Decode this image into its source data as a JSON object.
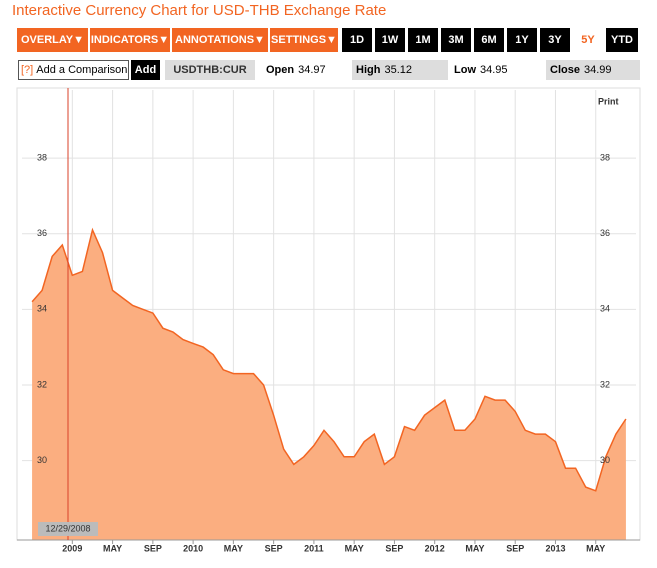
{
  "header": {
    "title": "Interactive Currency Chart for USD-THB Exchange Rate"
  },
  "menus": [
    "OVERLAY▼",
    "INDICATORS▼",
    "ANNOTATIONS▼",
    "SETTINGS▼"
  ],
  "ranges": [
    "1D",
    "1W",
    "1M",
    "3M",
    "6M",
    "1Y",
    "3Y",
    "5Y",
    "YTD"
  ],
  "selected_range": "5Y",
  "comparison": {
    "help": "[?]",
    "placeholder": "Add a Comparison",
    "button": "Add"
  },
  "ticker": "USDTHB:CUR",
  "stats": [
    {
      "label": "Open",
      "value": "34.97"
    },
    {
      "label": "High",
      "value": "35.12"
    },
    {
      "label": "Low",
      "value": "34.95"
    },
    {
      "label": "Close",
      "value": "34.99"
    }
  ],
  "print": "Print",
  "crosshair_label": "12/29/2008",
  "chart_data": {
    "type": "area",
    "x": [
      "2008-09",
      "2008-10",
      "2008-11",
      "2008-12",
      "2009-01",
      "2009-02",
      "2009-03",
      "2009-04",
      "2009-05",
      "2009-06",
      "2009-07",
      "2009-08",
      "2009-09",
      "2009-10",
      "2009-11",
      "2009-12",
      "2010-01",
      "2010-02",
      "2010-03",
      "2010-04",
      "2010-05",
      "2010-06",
      "2010-07",
      "2010-08",
      "2010-09",
      "2010-10",
      "2010-11",
      "2010-12",
      "2011-01",
      "2011-02",
      "2011-03",
      "2011-04",
      "2011-05",
      "2011-06",
      "2011-07",
      "2011-08",
      "2011-09",
      "2011-10",
      "2011-11",
      "2011-12",
      "2012-01",
      "2012-02",
      "2012-03",
      "2012-04",
      "2012-05",
      "2012-06",
      "2012-07",
      "2012-08",
      "2012-09",
      "2012-10",
      "2012-11",
      "2012-12",
      "2013-01",
      "2013-02",
      "2013-03",
      "2013-04",
      "2013-05",
      "2013-06",
      "2013-07",
      "2013-08"
    ],
    "values": [
      34.2,
      34.5,
      35.4,
      35.7,
      34.9,
      35.0,
      36.1,
      35.5,
      34.5,
      34.3,
      34.1,
      34.0,
      33.9,
      33.5,
      33.4,
      33.2,
      33.1,
      33.0,
      32.8,
      32.4,
      32.3,
      32.3,
      32.3,
      32.0,
      31.2,
      30.3,
      29.9,
      30.1,
      30.4,
      30.8,
      30.5,
      30.1,
      30.1,
      30.5,
      30.7,
      29.9,
      30.1,
      30.9,
      30.8,
      31.2,
      31.4,
      31.6,
      30.8,
      30.8,
      31.1,
      31.7,
      31.6,
      31.6,
      31.3,
      30.8,
      30.7,
      30.7,
      30.5,
      29.8,
      29.8,
      29.3,
      29.2,
      30.1,
      30.7,
      31.1
    ],
    "color": "#f26522",
    "fill": "#fbae80",
    "xlim": [
      "2008-08",
      "2013-09"
    ],
    "xticks": [
      {
        "value": "2009-01",
        "label": "2009"
      },
      {
        "value": "2009-05",
        "label": "MAY"
      },
      {
        "value": "2009-09",
        "label": "SEP"
      },
      {
        "value": "2010-01",
        "label": "2010"
      },
      {
        "value": "2010-05",
        "label": "MAY"
      },
      {
        "value": "2010-09",
        "label": "SEP"
      },
      {
        "value": "2011-01",
        "label": "2011"
      },
      {
        "value": "2011-05",
        "label": "MAY"
      },
      {
        "value": "2011-09",
        "label": "SEP"
      },
      {
        "value": "2012-01",
        "label": "2012"
      },
      {
        "value": "2012-05",
        "label": "MAY"
      },
      {
        "value": "2012-09",
        "label": "SEP"
      },
      {
        "value": "2013-01",
        "label": "2013"
      },
      {
        "value": "2013-05",
        "label": "MAY"
      }
    ],
    "ylim": [
      27.9,
      39.8
    ],
    "yticks": [
      30,
      32,
      34,
      36,
      38
    ],
    "grid": true
  }
}
